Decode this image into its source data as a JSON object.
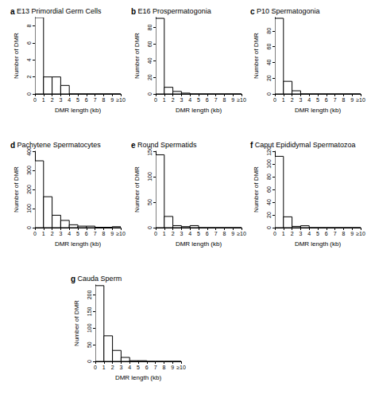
{
  "chart_data": [
    {
      "type": "histogram",
      "panel": "a",
      "title": "E13 Primordial Germ Cells",
      "x_label": "DMR length (kb)",
      "y_label": "Number of DMR",
      "bins": [
        0,
        1,
        2,
        3,
        4,
        5,
        6,
        7,
        8,
        9,
        10
      ],
      "counts": [
        9,
        2,
        2,
        1,
        0,
        0,
        0,
        0,
        0,
        0
      ],
      "xlim": [
        0,
        10
      ],
      "xticks": [
        0,
        1,
        2,
        3,
        4,
        5,
        6,
        7,
        8,
        9,
        {
          "value": 10,
          "label": "≥10"
        }
      ],
      "ylim": [
        0,
        9
      ],
      "yticks": [
        0,
        2,
        4,
        6,
        8
      ],
      "color": "#ffffff"
    },
    {
      "type": "histogram",
      "panel": "b",
      "title": "E16 Prospermatogonia",
      "x_label": "DMR length (kb)",
      "y_label": "Number of DMR",
      "bins": [
        0,
        1,
        2,
        3,
        4,
        5,
        6,
        7,
        8,
        9,
        10
      ],
      "counts": [
        91,
        8,
        3,
        1,
        0,
        0,
        0,
        0,
        0,
        0
      ],
      "xlim": [
        0,
        10
      ],
      "xticks": [
        0,
        1,
        2,
        3,
        4,
        5,
        6,
        7,
        8,
        9,
        {
          "value": 10,
          "label": "≥10"
        }
      ],
      "ylim": [
        0,
        92
      ],
      "yticks": [
        0,
        20,
        40,
        60,
        80
      ],
      "color": "#ffffff"
    },
    {
      "type": "histogram",
      "panel": "c",
      "title": "P10 Spermatogonia",
      "x_label": "DMR length (kb)",
      "y_label": "Number of DMR",
      "bins": [
        0,
        1,
        2,
        3,
        4,
        5,
        6,
        7,
        8,
        9,
        10
      ],
      "counts": [
        96,
        16,
        4,
        0,
        0,
        0,
        0,
        0,
        0,
        0
      ],
      "xlim": [
        0,
        10
      ],
      "xticks": [
        0,
        1,
        2,
        3,
        4,
        5,
        6,
        7,
        8,
        9,
        {
          "value": 10,
          "label": "≥10"
        }
      ],
      "ylim": [
        0,
        97
      ],
      "yticks": [
        0,
        20,
        40,
        60,
        80
      ],
      "color": "#ffffff"
    },
    {
      "type": "histogram",
      "panel": "d",
      "title": "Pachytene Spermatocytes",
      "x_label": "DMR length (kb)",
      "y_label": "Number of DMR",
      "bins": [
        0,
        1,
        2,
        3,
        4,
        5,
        6,
        7,
        8,
        9,
        10
      ],
      "counts": [
        350,
        162,
        65,
        38,
        15,
        8,
        8,
        2,
        2,
        5
      ],
      "xlim": [
        0,
        10
      ],
      "xticks": [
        0,
        1,
        2,
        3,
        4,
        5,
        6,
        7,
        8,
        9,
        {
          "value": 10,
          "label": "≥10"
        }
      ],
      "ylim": [
        0,
        400
      ],
      "yticks": [
        0,
        100,
        200,
        300,
        400
      ],
      "color": "#ffffff"
    },
    {
      "type": "histogram",
      "panel": "e",
      "title": "Round Spermatids",
      "x_label": "DMR length (kb)",
      "y_label": "Number of DMR",
      "bins": [
        0,
        1,
        2,
        3,
        4,
        5,
        6,
        7,
        8,
        9,
        10
      ],
      "counts": [
        143,
        22,
        4,
        2,
        4,
        0,
        0,
        0,
        0,
        0
      ],
      "xlim": [
        0,
        10
      ],
      "xticks": [
        0,
        1,
        2,
        3,
        4,
        5,
        6,
        7,
        8,
        9,
        {
          "value": 10,
          "label": "≥10"
        }
      ],
      "ylim": [
        0,
        150
      ],
      "yticks": [
        0,
        50,
        100,
        150
      ],
      "color": "#ffffff"
    },
    {
      "type": "histogram",
      "panel": "f",
      "title": "Caput Epididymal Spermatozoa",
      "x_label": "DMR length (kb)",
      "y_label": "Number of DMR",
      "bins": [
        0,
        1,
        2,
        3,
        4,
        5,
        6,
        7,
        8,
        9,
        10
      ],
      "counts": [
        112,
        17,
        2,
        3,
        0,
        0,
        0,
        0,
        0,
        0
      ],
      "xlim": [
        0,
        10
      ],
      "xticks": [
        0,
        1,
        2,
        3,
        4,
        5,
        6,
        7,
        8,
        9,
        {
          "value": 10,
          "label": "≥10"
        }
      ],
      "ylim": [
        0,
        120
      ],
      "yticks": [
        0,
        20,
        40,
        60,
        80,
        100,
        120
      ],
      "color": "#ffffff"
    },
    {
      "type": "histogram",
      "panel": "g",
      "title": "Cauda Sperm",
      "x_label": "DMR length (kb)",
      "y_label": "Number of DMR",
      "bins": [
        0,
        1,
        2,
        3,
        4,
        5,
        6,
        7,
        8,
        9,
        10
      ],
      "counts": [
        228,
        77,
        33,
        12,
        2,
        2,
        0,
        0,
        0,
        0
      ],
      "xlim": [
        0,
        10
      ],
      "xticks": [
        0,
        1,
        2,
        3,
        4,
        5,
        6,
        7,
        8,
        9,
        {
          "value": 10,
          "label": "≥10"
        }
      ],
      "ylim": [
        0,
        230
      ],
      "yticks": [
        0,
        50,
        100,
        150,
        200
      ],
      "color": "#ffffff"
    }
  ]
}
